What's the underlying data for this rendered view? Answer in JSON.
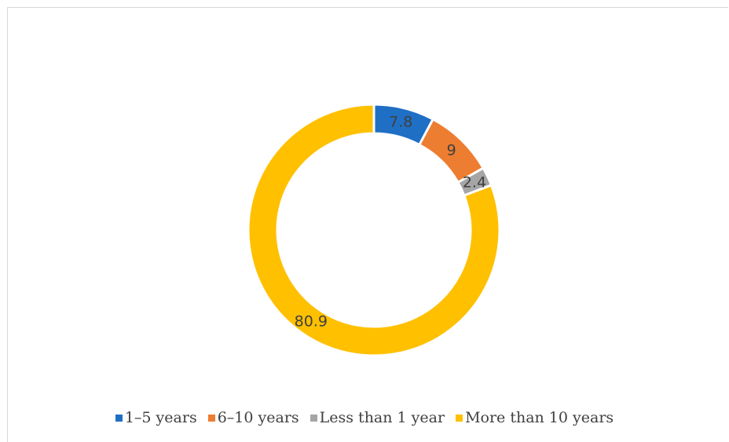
{
  "chart_data": {
    "type": "pie",
    "variant": "donut",
    "start_angle_degrees_clockwise_from_top": 0,
    "categories": [
      "1–5 years",
      "6–10 years",
      "Less than 1 year",
      "More than 10 years"
    ],
    "values": [
      7.8,
      9,
      2.4,
      80.9
    ],
    "value_labels": [
      "7.8",
      "9",
      "2.4",
      "80.9"
    ],
    "colors": [
      "#1f6fc5",
      "#ed7d31",
      "#a5a5a5",
      "#ffc000"
    ],
    "legend": {
      "position": "bottom",
      "entries": [
        "1–5 years",
        "6–10 years",
        "Less than 1 year",
        "More than 10 years"
      ]
    },
    "title": ""
  }
}
